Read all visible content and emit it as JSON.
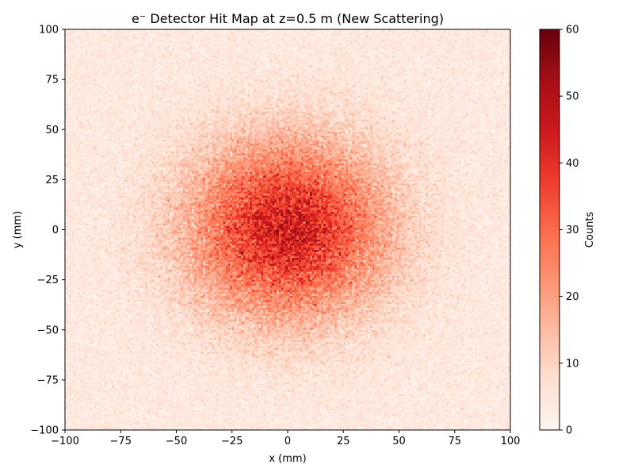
{
  "chart_data": {
    "type": "heatmap",
    "title": "e⁻ Detector Hit Map at z=0.5 m (New Scattering)",
    "xlabel": "x (mm)",
    "ylabel": "y (mm)",
    "xlim": [
      -100,
      100
    ],
    "ylim": [
      -100,
      100
    ],
    "xticks": [
      -100,
      -75,
      -50,
      -25,
      0,
      25,
      50,
      75,
      100
    ],
    "yticks": [
      -100,
      -75,
      -50,
      -25,
      0,
      25,
      50,
      75,
      100
    ],
    "xtick_labels": [
      "−100",
      "−75",
      "−50",
      "−25",
      "0",
      "25",
      "50",
      "75",
      "100"
    ],
    "ytick_labels": [
      "−100",
      "−75",
      "−50",
      "−25",
      "0",
      "25",
      "50",
      "75",
      "100"
    ],
    "colorbar": {
      "label": "Counts",
      "range": [
        0,
        60
      ],
      "ticks": [
        0,
        10,
        20,
        30,
        40,
        50,
        60
      ],
      "tick_labels": [
        "0",
        "10",
        "20",
        "30",
        "40",
        "50",
        "60"
      ],
      "colormap": "Reds"
    },
    "bins": [
      200,
      200
    ],
    "distribution": {
      "shape": "2D Gaussian",
      "center_x": 0,
      "center_y": 0,
      "sigma_x": 30,
      "sigma_y": 30,
      "peak_counts": 40,
      "background_counts": 4
    },
    "grid": false
  }
}
